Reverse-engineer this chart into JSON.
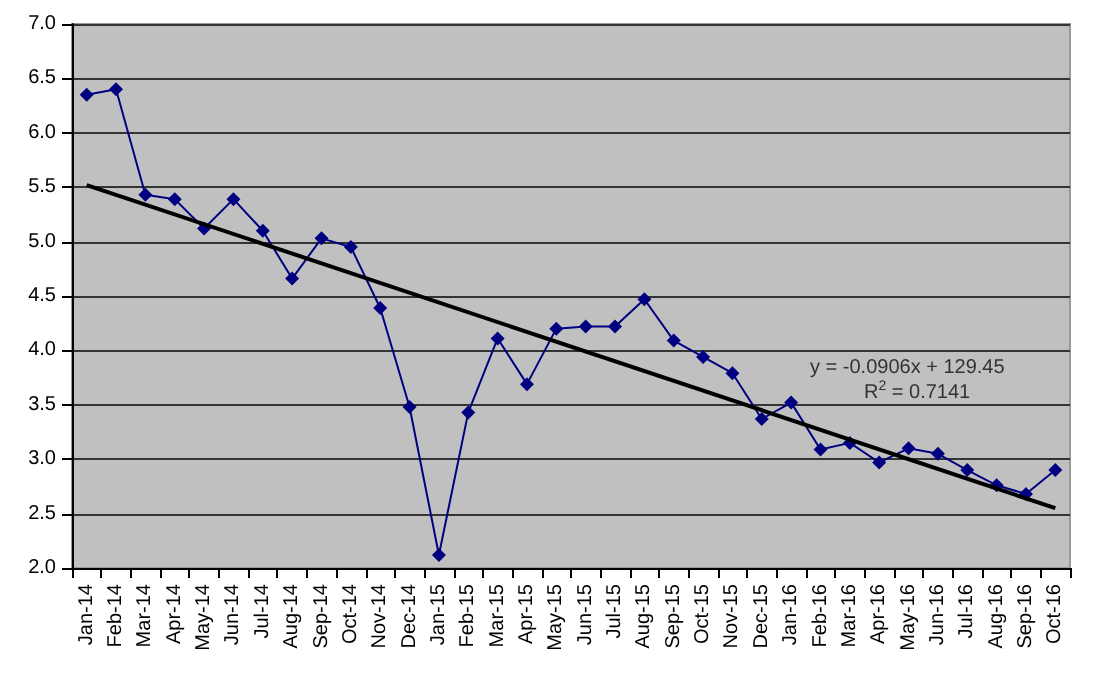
{
  "chart_data": {
    "type": "line",
    "categories": [
      "Jan-14",
      "Feb-14",
      "Mar-14",
      "Apr-14",
      "May-14",
      "Jun-14",
      "Jul-14",
      "Aug-14",
      "Sep-14",
      "Oct-14",
      "Nov-14",
      "Dec-14",
      "Jan-15",
      "Feb-15",
      "Mar-15",
      "Apr-15",
      "May-15",
      "Jun-15",
      "Jul-15",
      "Aug-15",
      "Sep-15",
      "Oct-15",
      "Nov-15",
      "Dec-15",
      "Jan-16",
      "Feb-16",
      "Mar-16",
      "Apr-16",
      "May-16",
      "Jun-16",
      "Jul-16",
      "Aug-16",
      "Sep-16",
      "Oct-16"
    ],
    "series": [
      {
        "color": "#000080",
        "marker": "diamond",
        "values": [
          6.35,
          6.4,
          5.43,
          5.39,
          5.12,
          5.39,
          5.1,
          4.66,
          5.03,
          4.95,
          4.39,
          3.48,
          2.12,
          3.43,
          4.11,
          3.69,
          4.2,
          4.22,
          4.22,
          4.47,
          4.09,
          3.94,
          3.79,
          3.37,
          3.52,
          3.09,
          3.15,
          2.97,
          3.1,
          3.05,
          2.9,
          2.76,
          2.68,
          2.9
        ]
      },
      {
        "type": "line",
        "color": "#000000",
        "marker": "none",
        "x": [
          "Jan-14",
          "Oct-16"
        ],
        "values": [
          5.52,
          2.55
        ]
      }
    ],
    "ylim": [
      2.0,
      7.0
    ],
    "yticks": [
      {
        "value": 2,
        "label": "2.0"
      },
      {
        "value": 2.5,
        "label": "2.5"
      },
      {
        "value": 3,
        "label": "3.0"
      },
      {
        "value": 3.5,
        "label": "3.5"
      },
      {
        "value": 4,
        "label": "4.0"
      },
      {
        "value": 4.5,
        "label": "4.5"
      },
      {
        "value": 5,
        "label": "5.0"
      },
      {
        "value": 5.5,
        "label": "5.5"
      },
      {
        "value": 6,
        "label": "6.0"
      },
      {
        "value": 6.5,
        "label": "6.5"
      },
      {
        "value": 7,
        "label": "7.0"
      }
    ],
    "grid": "y",
    "annotations": [
      "y = -0.0906x + 129.45",
      "R$^{2}$ = 0.7141"
    ]
  }
}
